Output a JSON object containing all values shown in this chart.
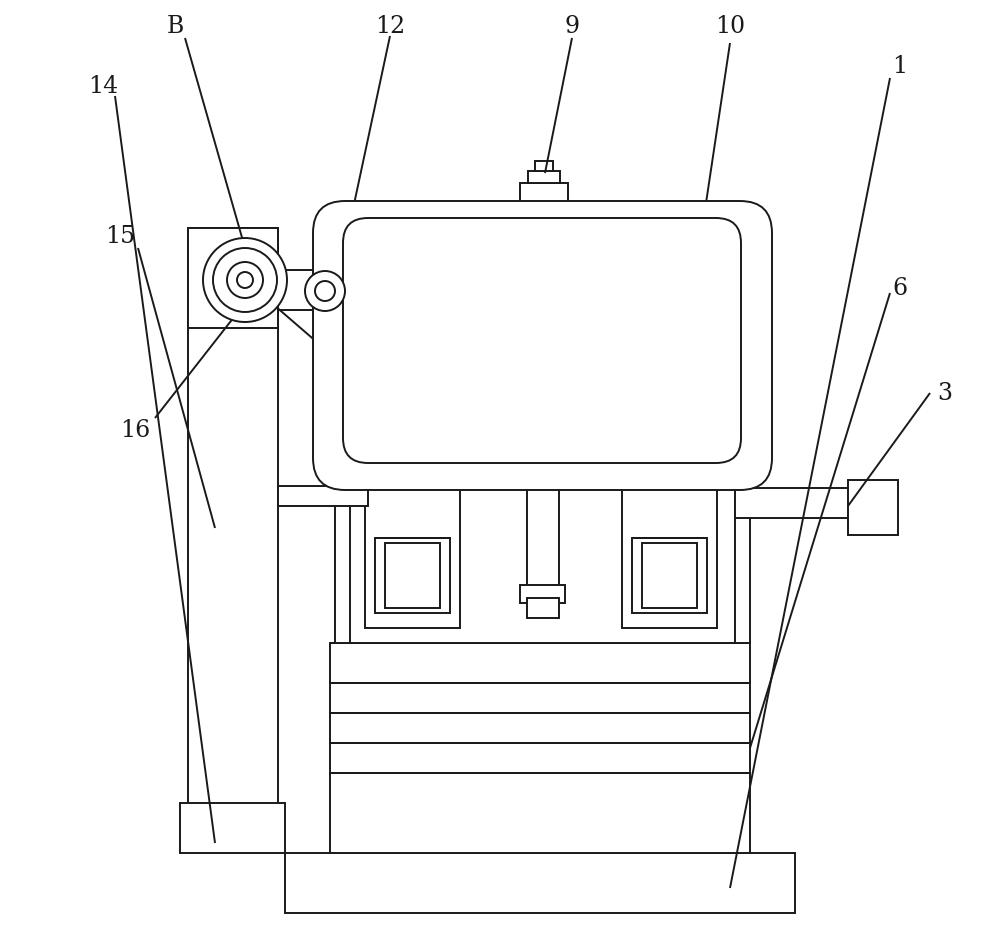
{
  "bg_color": "#ffffff",
  "line_color": "#1a1a1a",
  "lw": 1.4,
  "figsize": [
    10.0,
    9.48
  ]
}
